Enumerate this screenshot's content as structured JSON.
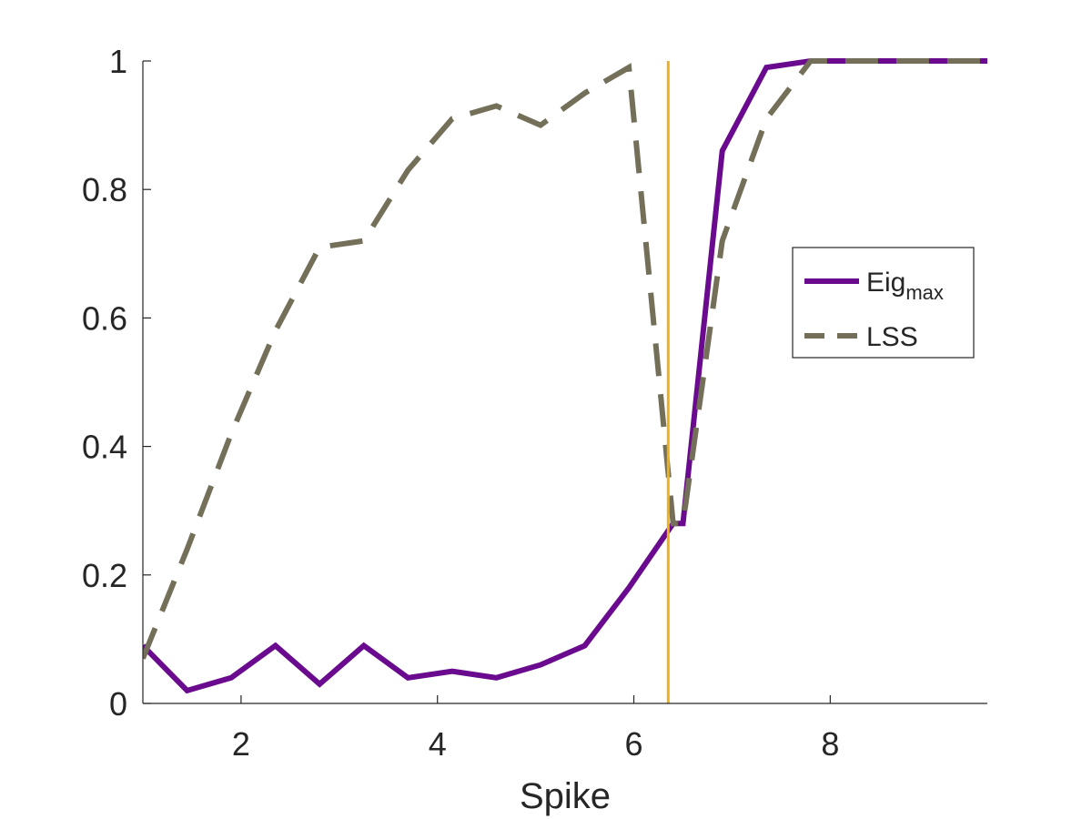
{
  "chart_data": {
    "type": "line",
    "xlabel": "Spike",
    "ylabel": "",
    "xlim": [
      1.0,
      9.6
    ],
    "ylim": [
      0,
      1
    ],
    "xticks": [
      2,
      4,
      6,
      8
    ],
    "yticks": [
      0,
      0.2,
      0.4,
      0.6,
      0.8,
      1
    ],
    "xtick_labels": [
      "2",
      "4",
      "6",
      "8"
    ],
    "ytick_labels": [
      "0",
      "0.2",
      "0.4",
      "0.6",
      "0.8",
      "1"
    ],
    "grid": false,
    "legend_position": "right",
    "legend": {
      "series_0": {
        "base": "Eig",
        "sub": "max"
      },
      "series_1": {
        "base": "LSS",
        "sub": ""
      }
    },
    "vline": {
      "x": 6.35,
      "color": "#EDB120"
    },
    "series": [
      {
        "style": "solid",
        "color": "#6A0A8E",
        "x": [
          1.0,
          1.45,
          1.9,
          2.35,
          2.8,
          3.25,
          3.7,
          4.15,
          4.6,
          5.05,
          5.5,
          5.95,
          6.4,
          6.5,
          6.9,
          7.35,
          7.8,
          8.25,
          8.7,
          9.15,
          9.6
        ],
        "y": [
          0.09,
          0.02,
          0.04,
          0.09,
          0.03,
          0.09,
          0.04,
          0.05,
          0.04,
          0.06,
          0.09,
          0.18,
          0.28,
          0.28,
          0.86,
          0.99,
          1.0,
          1.0,
          1.0,
          1.0,
          1.0
        ]
      },
      {
        "style": "dashed",
        "color": "#736F59",
        "x": [
          1.0,
          1.45,
          1.9,
          2.35,
          2.8,
          3.25,
          3.7,
          4.15,
          4.6,
          5.05,
          5.5,
          5.95,
          6.4,
          6.5,
          6.9,
          7.35,
          7.8,
          8.25,
          8.7,
          9.15,
          9.6
        ],
        "y": [
          0.07,
          0.24,
          0.42,
          0.58,
          0.71,
          0.72,
          0.83,
          0.91,
          0.93,
          0.9,
          0.95,
          0.99,
          0.28,
          0.28,
          0.72,
          0.91,
          1.0,
          1.0,
          1.0,
          1.0,
          1.0
        ]
      }
    ]
  }
}
